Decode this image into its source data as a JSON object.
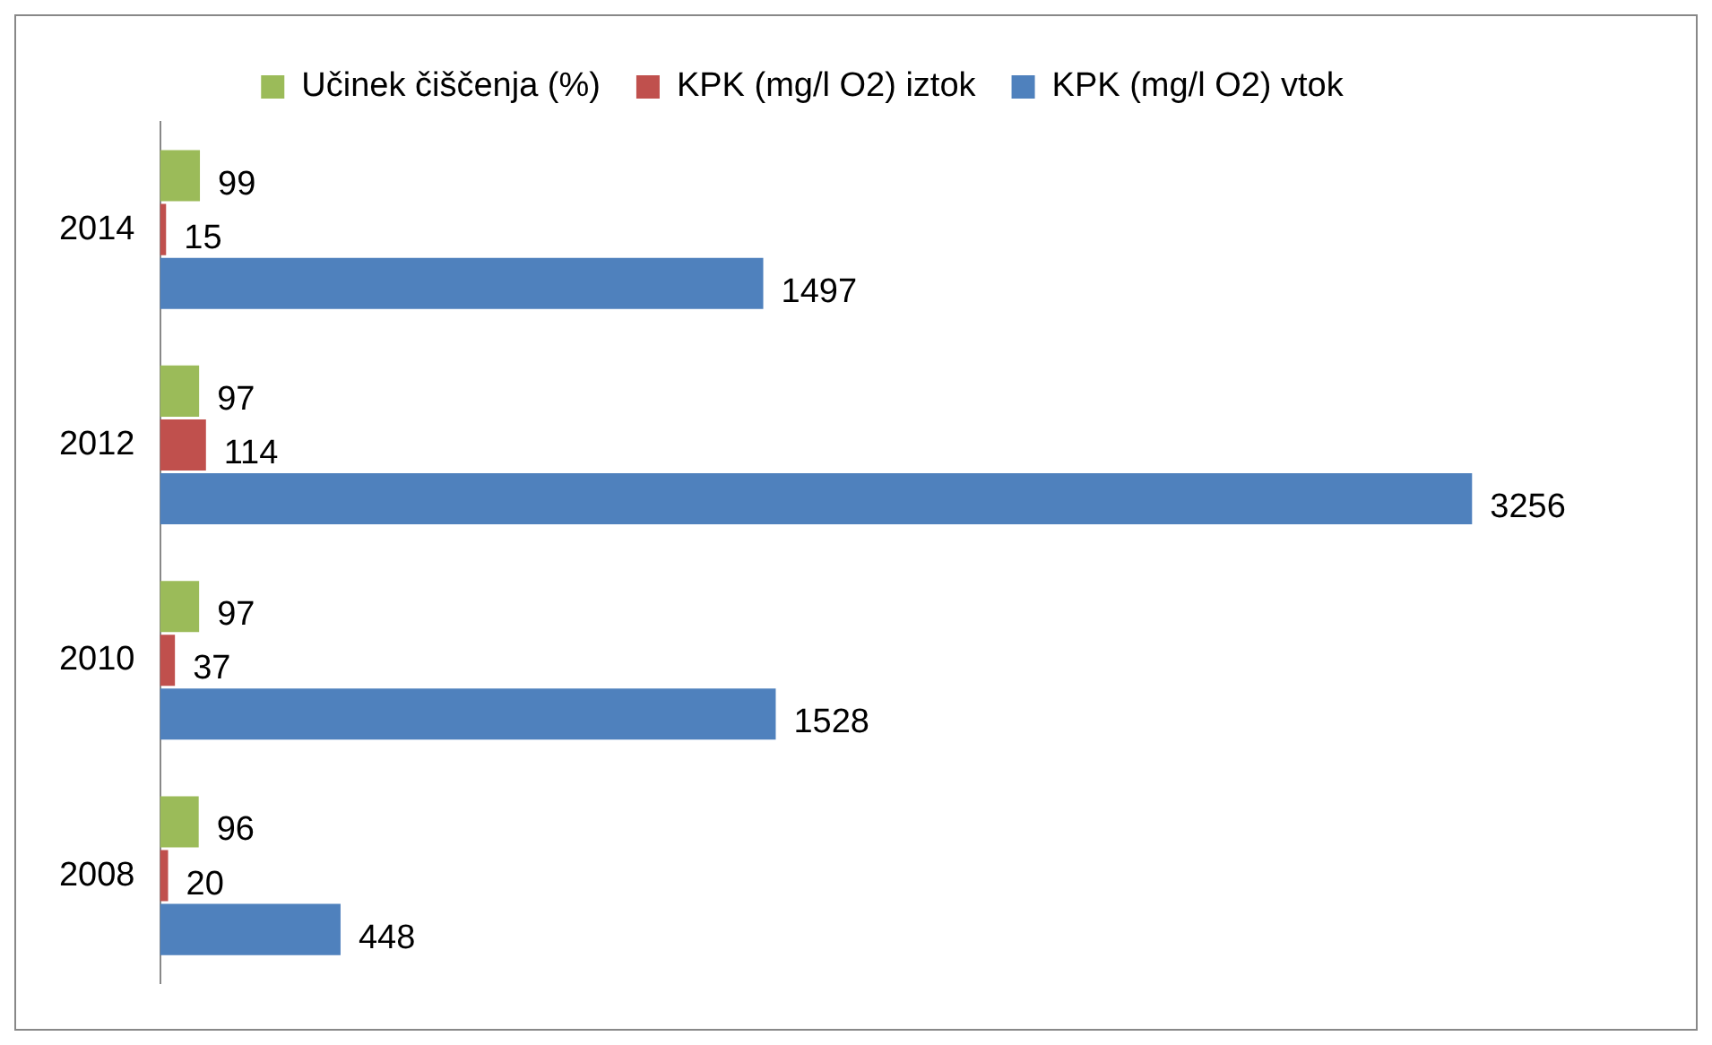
{
  "chart_data": {
    "type": "bar",
    "orientation": "horizontal",
    "categories": [
      "2014",
      "2012",
      "2010",
      "2008"
    ],
    "series": [
      {
        "name": "Učinek čiščenja (%)",
        "color": "#9bbb59",
        "values": [
          99,
          97,
          97,
          96
        ]
      },
      {
        "name": "KPK (mg/l O2) iztok",
        "color": "#c0504d",
        "values": [
          15,
          114,
          37,
          20
        ]
      },
      {
        "name": "KPK (mg/l O2) vtok",
        "color": "#4f81bd",
        "values": [
          1497,
          3256,
          1528,
          448
        ]
      }
    ],
    "data_labels": true,
    "legend": "top",
    "grid": false
  }
}
